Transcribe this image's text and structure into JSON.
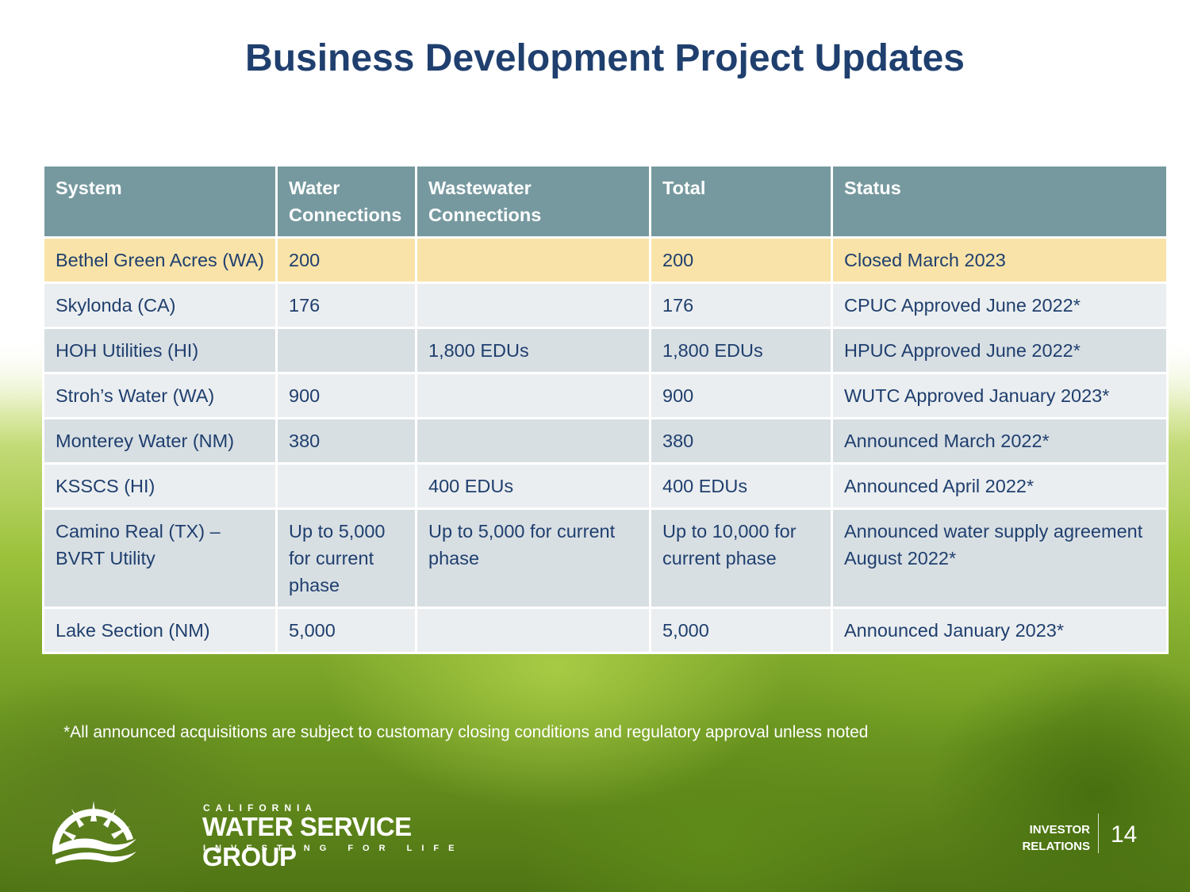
{
  "title": "Business Development Project Updates",
  "table": {
    "headers": [
      "System",
      "Water Connections",
      "Wastewater Connections",
      "Total",
      "Status"
    ],
    "rows": [
      [
        "Bethel Green Acres (WA)",
        "200",
        "",
        "200",
        "Closed March 2023"
      ],
      [
        "Skylonda (CA)",
        "176",
        "",
        "176",
        "CPUC Approved June 2022*"
      ],
      [
        "HOH Utilities (HI)",
        "",
        "1,800 EDUs",
        "1,800 EDUs",
        "HPUC Approved June 2022*"
      ],
      [
        "Stroh’s Water (WA)",
        "900",
        "",
        "900",
        "WUTC Approved January 2023*"
      ],
      [
        "Monterey Water (NM)",
        "380",
        "",
        "380",
        "Announced March 2022*"
      ],
      [
        "KSSCS (HI)",
        "",
        "400 EDUs",
        "400 EDUs",
        "Announced April 2022*"
      ],
      [
        "Camino Real (TX) – BVRT Utility",
        "Up to 5,000 for current phase",
        "Up to 5,000 for current phase",
        "Up to 10,000 for current phase",
        "Announced water supply agreement August 2022*"
      ],
      [
        "Lake Section (NM)",
        "5,000",
        "",
        "5,000",
        "Announced January 2023*"
      ]
    ]
  },
  "footnote": "*All announced acquisitions are subject to customary closing conditions and regulatory approval unless noted",
  "logo": {
    "top_line": "CALIFORNIA",
    "main": "WATER SERVICE GROUP",
    "tagline": "INVESTING FOR LIFE"
  },
  "footer": {
    "ir_line1": "INVESTOR",
    "ir_line2": "RELATIONS",
    "page_number": "14"
  },
  "colors": {
    "title": "#1f3f6e",
    "header_bg": "#76999f",
    "highlight_row": "#f9e3a8",
    "row_light": "#ebeef0",
    "row_dark": "#d8dfe3"
  }
}
